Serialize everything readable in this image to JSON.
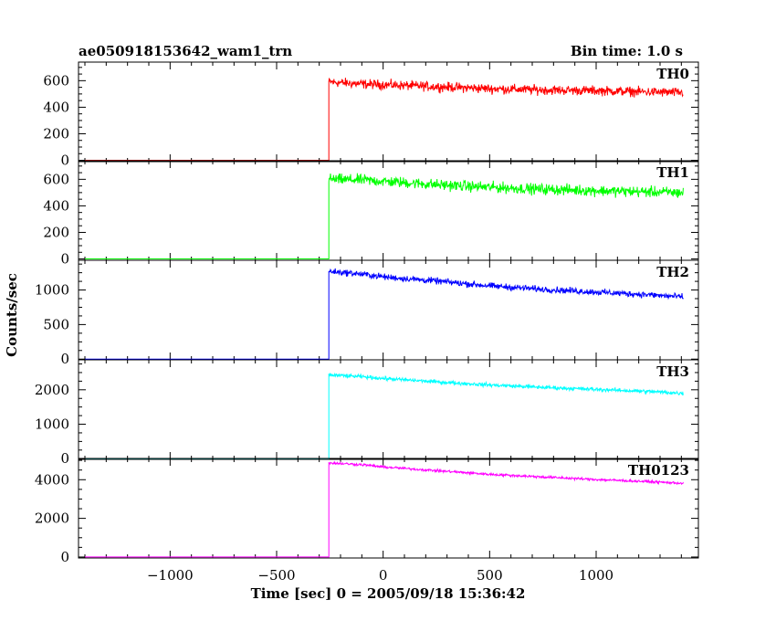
{
  "header": {
    "title": "ae050918153642_wam1_trn",
    "bin_time": "Bin time: 1.0 s"
  },
  "chart_data": {
    "type": "line",
    "xlabel": "Time [sec] 0 = 2005/09/18 15:36:42",
    "ylabel": "Counts/sec",
    "xlim": [
      -1430,
      1480
    ],
    "x_ticks": [
      -1000,
      -500,
      0,
      500,
      1000
    ],
    "x_tick_labels": [
      "−1000",
      "−500",
      "0",
      "500",
      "1000"
    ],
    "step_time": -255,
    "data_end": 1410,
    "panels": [
      {
        "name": "TH0",
        "color": "#ff0000",
        "ylim": [
          -10,
          740
        ],
        "y_ticks": [
          0,
          200,
          400,
          600
        ],
        "baseline": 0,
        "x": [
          -250,
          -100,
          0,
          250,
          500,
          750,
          1000,
          1250,
          1400
        ],
        "values": [
          590,
          575,
          570,
          555,
          540,
          530,
          525,
          515,
          510
        ],
        "noise": 35
      },
      {
        "name": "TH1",
        "color": "#00ff00",
        "ylim": [
          -10,
          740
        ],
        "y_ticks": [
          0,
          200,
          400,
          600
        ],
        "baseline": 0,
        "x": [
          -250,
          -100,
          0,
          250,
          500,
          750,
          1000,
          1250,
          1400
        ],
        "values": [
          600,
          595,
          585,
          560,
          540,
          525,
          515,
          505,
          500
        ],
        "noise": 40
      },
      {
        "name": "TH2",
        "color": "#0000ff",
        "ylim": [
          -10,
          1430
        ],
        "y_ticks": [
          0,
          500,
          1000
        ],
        "baseline": 0,
        "x": [
          -250,
          -100,
          0,
          250,
          500,
          750,
          1000,
          1250,
          1400
        ],
        "values": [
          1270,
          1230,
          1190,
          1130,
          1060,
          1010,
          970,
          930,
          900
        ],
        "noise": 45
      },
      {
        "name": "TH3",
        "color": "#00ffff",
        "ylim": [
          -20,
          2870
        ],
        "y_ticks": [
          0,
          1000,
          2000
        ],
        "baseline": 0,
        "x": [
          -250,
          -100,
          0,
          250,
          500,
          750,
          1000,
          1250,
          1400
        ],
        "values": [
          2430,
          2380,
          2330,
          2230,
          2140,
          2070,
          2010,
          1950,
          1900
        ],
        "noise": 55
      },
      {
        "name": "TH0123",
        "color": "#ff00ff",
        "ylim": [
          -50,
          5100
        ],
        "y_ticks": [
          0,
          2000,
          4000
        ],
        "baseline": 0,
        "x": [
          -250,
          -100,
          0,
          250,
          500,
          750,
          1000,
          1250,
          1400
        ],
        "values": [
          4870,
          4780,
          4660,
          4470,
          4280,
          4140,
          4010,
          3900,
          3820
        ],
        "noise": 65
      }
    ]
  }
}
